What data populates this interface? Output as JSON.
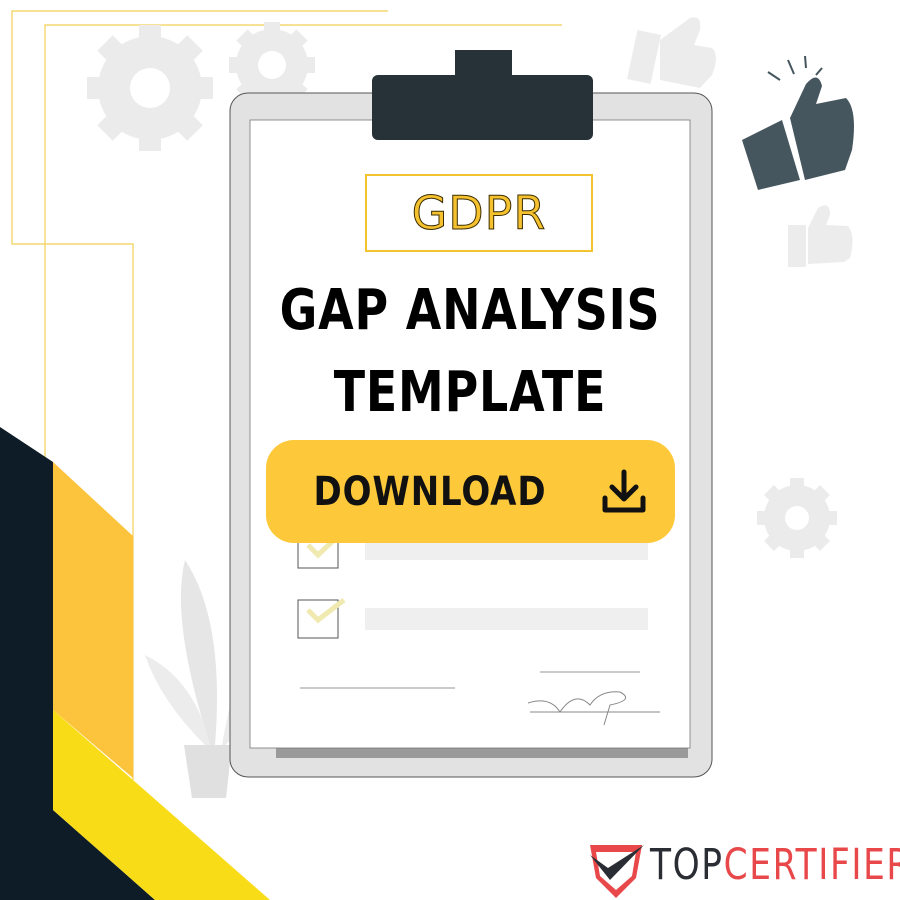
{
  "badge": {
    "label": "GDPR"
  },
  "title": {
    "line1": "GAP ANALYSIS",
    "line2": "TEMPLATE"
  },
  "cta": {
    "label": "DOWNLOAD",
    "icon": "download-icon"
  },
  "brand": {
    "part1": "TOP",
    "part2": "CERTIFIER",
    "logo_icon": "shield-check-icon"
  },
  "colors": {
    "accent_yellow": "#fdc93a",
    "dark_navy": "#0e1c27",
    "brand_red": "#e8484a",
    "brand_dark": "#2a2d33",
    "clip_dark": "#263238"
  }
}
